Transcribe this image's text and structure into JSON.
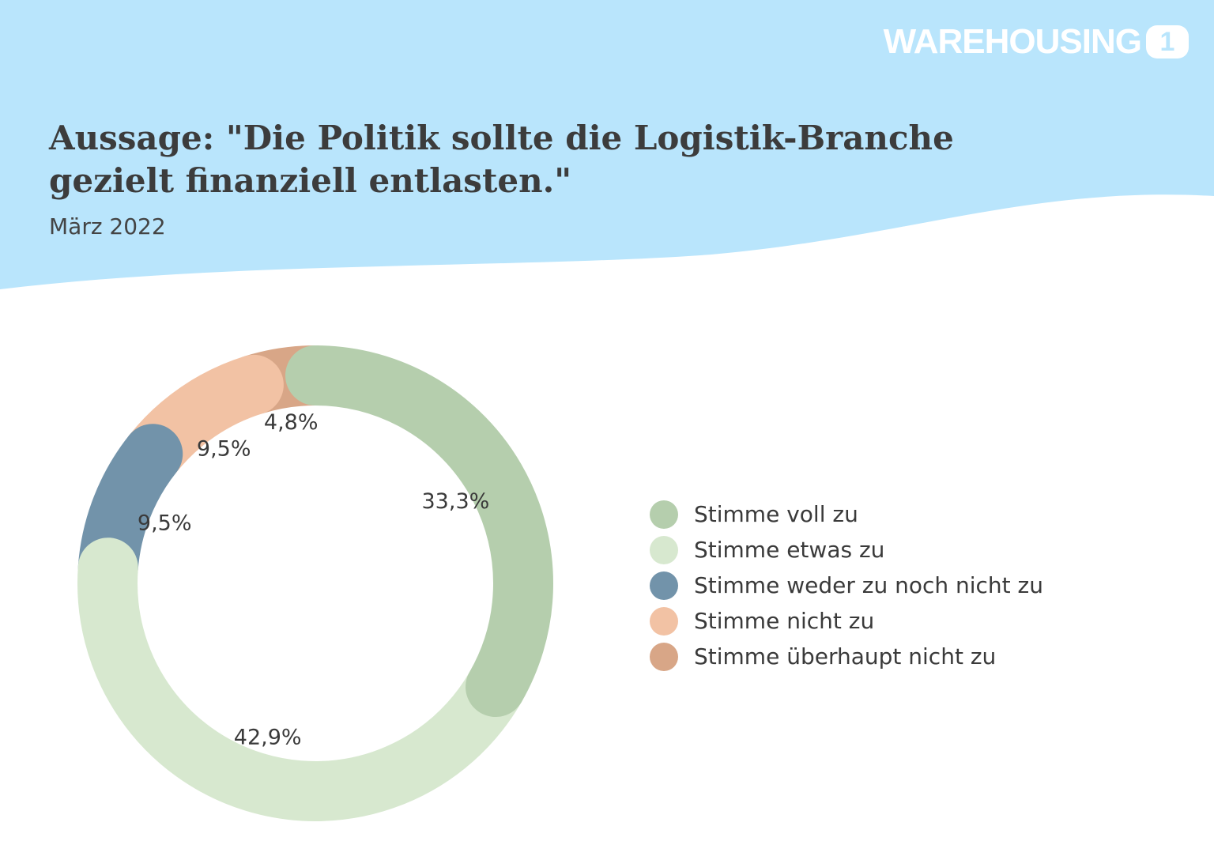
{
  "brand": {
    "logo_text": "WAREHOUSING",
    "logo_number": "1",
    "background_color": "#b9e5fc"
  },
  "header": {
    "title": "Aussage: \"Die Politik sollte die Logistik-Branche gezielt finanziell entlasten.\"",
    "subtitle": "März 2022"
  },
  "chart_data": {
    "type": "pie",
    "donut": true,
    "legend_position": "right",
    "categories": [
      "Stimme voll zu",
      "Stimme etwas zu",
      "Stimme weder zu noch nicht zu",
      "Stimme nicht zu",
      "Stimme überhaupt nicht zu"
    ],
    "values": [
      33.3,
      42.9,
      9.5,
      9.5,
      4.8
    ],
    "labels": [
      "33,3%",
      "42,9%",
      "9,5%",
      "9,5%",
      "4,8%"
    ],
    "colors": [
      "#b5cead",
      "#d7e8cf",
      "#7293aa",
      "#f2c2a4",
      "#d8a687"
    ]
  }
}
